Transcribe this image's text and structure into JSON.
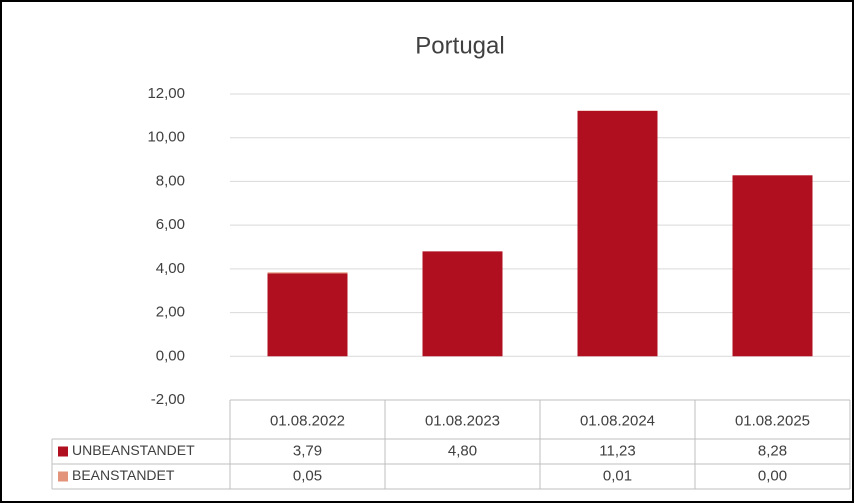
{
  "chart_data": {
    "type": "stacked-bar",
    "title": "Portugal",
    "categories": [
      "01.08.2022",
      "01.08.2023",
      "01.08.2024",
      "01.08.2025"
    ],
    "series": [
      {
        "name": "UNBEANSTANDET",
        "color": "#b00f1f",
        "values": [
          3.79,
          4.8,
          11.23,
          8.28
        ],
        "value_labels": [
          "3,79",
          "4,80",
          "11,23",
          "8,28"
        ]
      },
      {
        "name": "BEANSTANDET",
        "color": "#e3937a",
        "values": [
          0.05,
          null,
          0.01,
          0.0
        ],
        "value_labels": [
          "0,05",
          null,
          "0,01",
          "0,00"
        ]
      }
    ],
    "ylim": [
      -2,
      12
    ],
    "yticks": [
      {
        "value": -2,
        "label": "-2,00"
      },
      {
        "value": 0,
        "label": "0,00"
      },
      {
        "value": 2,
        "label": "2,00"
      },
      {
        "value": 4,
        "label": "4,00"
      },
      {
        "value": 6,
        "label": "6,00"
      },
      {
        "value": 8,
        "label": "8,00"
      },
      {
        "value": 10,
        "label": "10,00"
      },
      {
        "value": 12,
        "label": "12,00"
      }
    ],
    "grid": true
  }
}
